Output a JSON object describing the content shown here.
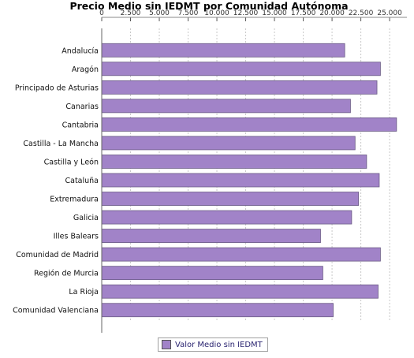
{
  "chart_data": {
    "type": "bar",
    "orientation": "horizontal",
    "title": "Precio Medio sin IEDMT por Comunidad Autónoma",
    "xlabel": "",
    "ylabel": "",
    "xlim": [
      0,
      26500
    ],
    "ticks": [
      0,
      2500,
      5000,
      7500,
      10000,
      12500,
      15000,
      17500,
      20000,
      22500,
      25000
    ],
    "tick_labels": [
      "0",
      "2.500",
      "5.000",
      "7.500",
      "10.000",
      "12.500",
      "15.000",
      "17.500",
      "20.000",
      "22.500",
      "25.000"
    ],
    "grid": true,
    "legend_position": "bottom",
    "categories": [
      "Andalucía",
      "Aragón",
      "Principado de Asturias",
      "Canarias",
      "Cantabria",
      "Castilla - La Mancha",
      "Castilla y León",
      "Cataluña",
      "Extremadura",
      "Galicia",
      "Illes Balears",
      "Comunidad de Madrid",
      "Región de Murcia",
      "La Rioja",
      "Comunidad Valenciana"
    ],
    "series": [
      {
        "name": "Valor Medio sin IEDMT",
        "color": "#a183c8",
        "values": [
          21100,
          24200,
          23900,
          21600,
          25600,
          22000,
          23000,
          24100,
          22300,
          21700,
          19000,
          24200,
          19200,
          24000,
          20100
        ]
      }
    ]
  }
}
